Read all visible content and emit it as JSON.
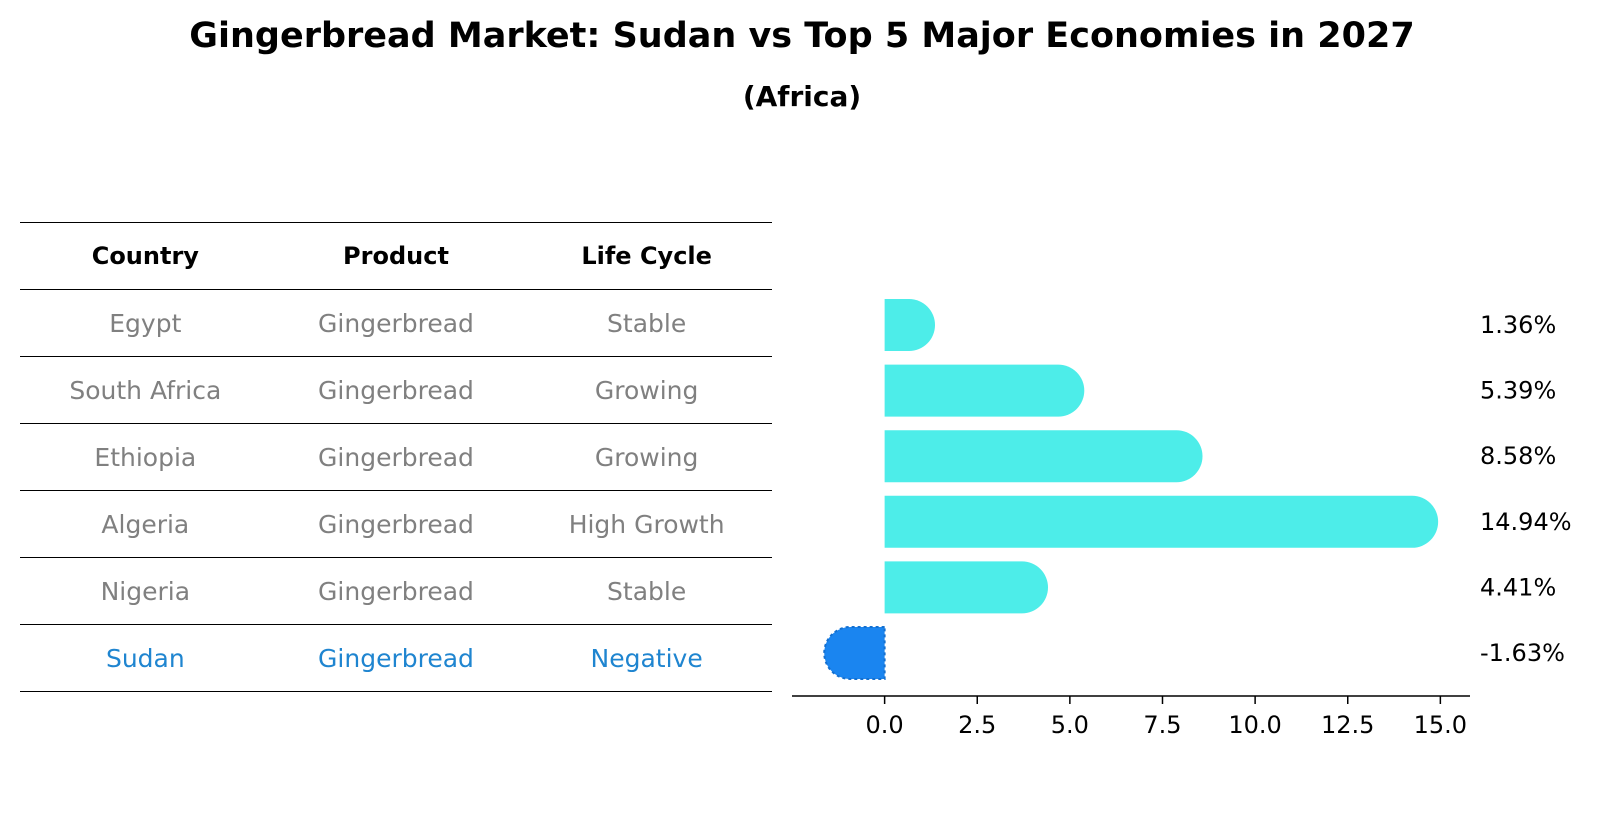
{
  "title": "Gingerbread Market: Sudan vs Top 5 Major Economies in 2027",
  "subtitle": "(Africa)",
  "table": {
    "headers": [
      "Country",
      "Product",
      "Life Cycle"
    ],
    "rows": [
      [
        "Egypt",
        "Gingerbread",
        "Stable"
      ],
      [
        "South Africa",
        "Gingerbread",
        "Growing"
      ],
      [
        "Ethiopia",
        "Gingerbread",
        "Growing"
      ],
      [
        "Algeria",
        "Gingerbread",
        "High Growth"
      ],
      [
        "Nigeria",
        "Gingerbread",
        "Stable"
      ],
      [
        "Sudan",
        "Gingerbread",
        "Negative"
      ]
    ],
    "highlight_row": 5
  },
  "colors": {
    "bar": "#4dede9",
    "highlight_bar": "#1a85f0",
    "highlight_text": "#1f85d0",
    "muted_text": "#808080"
  },
  "chart_data": {
    "type": "bar",
    "orientation": "horizontal",
    "categories": [
      "Egypt",
      "South Africa",
      "Ethiopia",
      "Algeria",
      "Nigeria",
      "Sudan"
    ],
    "values": [
      1.36,
      5.39,
      8.58,
      14.94,
      4.41,
      -1.63
    ],
    "value_labels": [
      "1.36%",
      "5.39%",
      "8.58%",
      "14.94%",
      "4.41%",
      "-1.63%"
    ],
    "highlight_index": 5,
    "xlim": [
      -2.5,
      15.8
    ],
    "xticks": [
      0.0,
      2.5,
      5.0,
      7.5,
      10.0,
      12.5,
      15.0
    ],
    "xtick_labels": [
      "0.0",
      "2.5",
      "5.0",
      "7.5",
      "10.0",
      "12.5",
      "15.0"
    ],
    "grid": false
  }
}
